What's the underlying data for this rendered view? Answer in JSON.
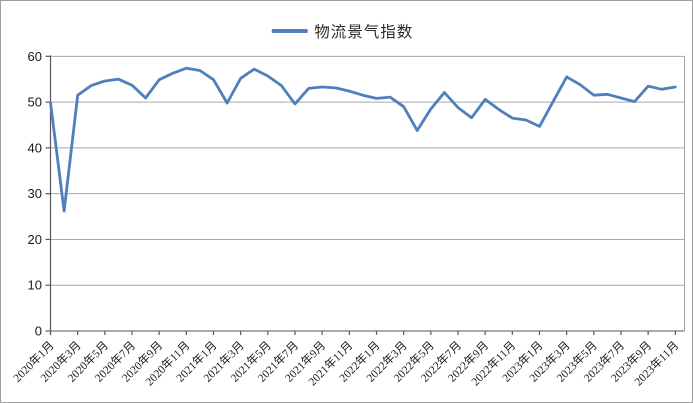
{
  "chart_data": {
    "type": "line",
    "legend": "物流景气指数",
    "legend_position": "top",
    "grid": true,
    "ylim": [
      0,
      60
    ],
    "ytick_step": 10,
    "y_ticks": [
      0,
      10,
      20,
      30,
      40,
      50,
      60
    ],
    "x_label_interval": 2,
    "x_labels": [
      "2020年1月",
      "2020年3月",
      "2020年5月",
      "2020年7月",
      "2020年9月",
      "2020年11月",
      "2021年1月",
      "2021年3月",
      "2021年5月",
      "2021年7月",
      "2021年9月",
      "2021年11月",
      "2022年1月",
      "2022年3月",
      "2022年5月",
      "2022年7月",
      "2022年9月",
      "2022年11月",
      "2023年1月",
      "2023年3月",
      "2023年5月",
      "2023年7月",
      "2023年9月",
      "2023年11月"
    ],
    "series": [
      {
        "name": "物流景气指数",
        "values": [
          49.9,
          26.2,
          51.5,
          53.6,
          54.6,
          55.0,
          53.7,
          50.9,
          54.9,
          56.3,
          57.4,
          56.9,
          54.9,
          49.8,
          55.2,
          57.2,
          55.7,
          53.6,
          49.6,
          53.0,
          53.3,
          53.1,
          52.4,
          51.5,
          50.8,
          51.1,
          49.0,
          43.8,
          48.5,
          52.1,
          48.8,
          46.6,
          50.6,
          48.4,
          46.5,
          46.1,
          44.7,
          50.1,
          55.5,
          53.8,
          51.5,
          51.7,
          50.9,
          50.1,
          53.5,
          52.8,
          53.3
        ]
      }
    ],
    "line_color": "#4E80BC",
    "gridline_color": "#A6A6A6",
    "axis_color": "#595959",
    "title": "",
    "xlabel": "",
    "ylabel": ""
  }
}
